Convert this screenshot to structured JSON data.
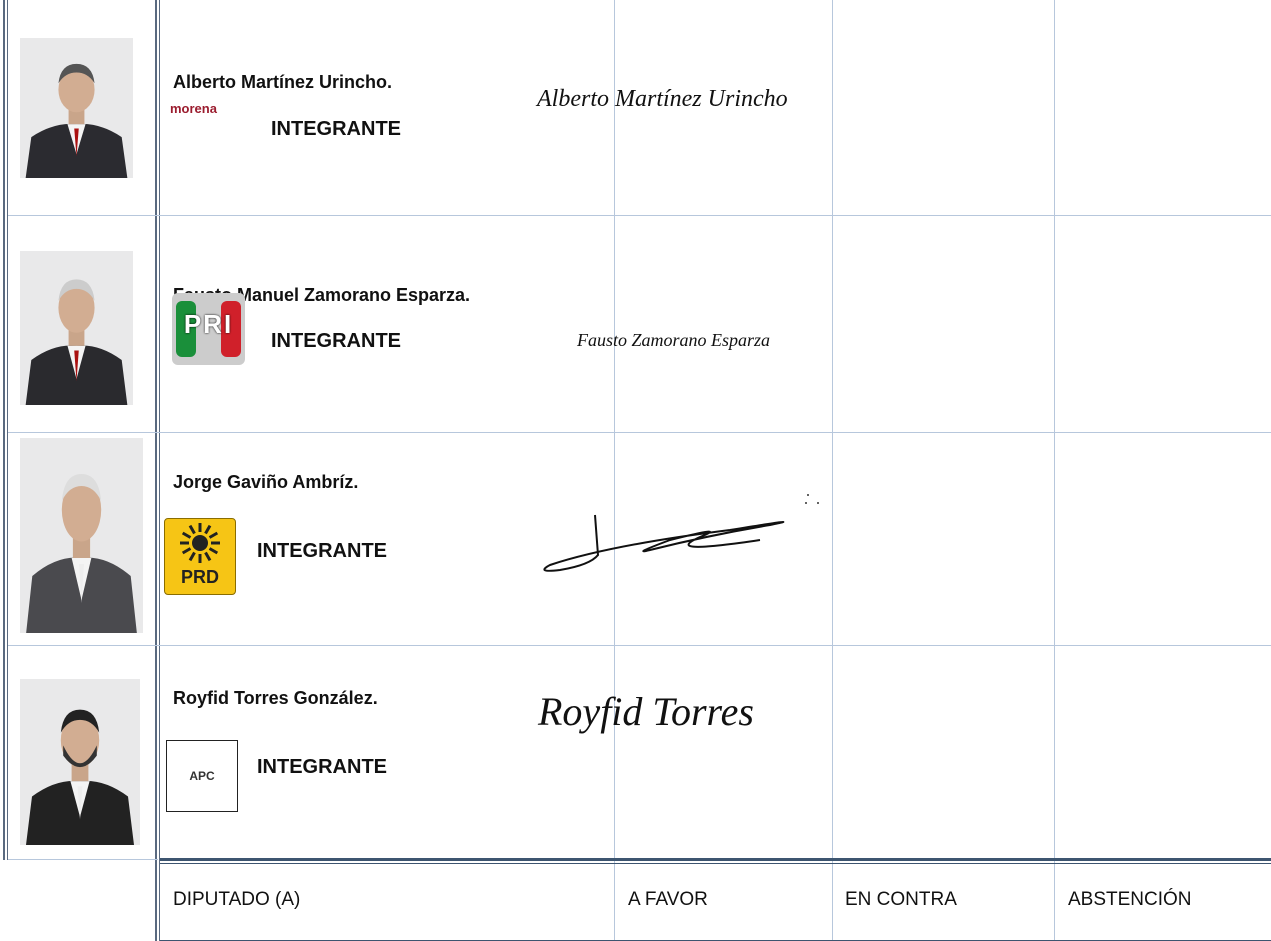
{
  "table": {
    "rows": [
      {
        "name": "Alberto Martínez Urincho.",
        "party": "morena",
        "role": "INTEGRANTE",
        "signature": "Alberto Martínez Urincho"
      },
      {
        "name": "Fausto Manuel Zamorano Esparza.",
        "party": "PRI",
        "role": "INTEGRANTE",
        "signature": "Fausto Zamorano Esparza"
      },
      {
        "name": "Jorge Gaviño Ambríz.",
        "party": "PRD",
        "role": "INTEGRANTE"
      },
      {
        "name": "Royfid Torres González.",
        "party": "APC",
        "role": "INTEGRANTE",
        "signature": "Royfid Torres"
      }
    ],
    "header": [
      "DIPUTADO (A)",
      "A FAVOR",
      "EN CONTRA",
      "ABSTENCIÓN"
    ]
  }
}
